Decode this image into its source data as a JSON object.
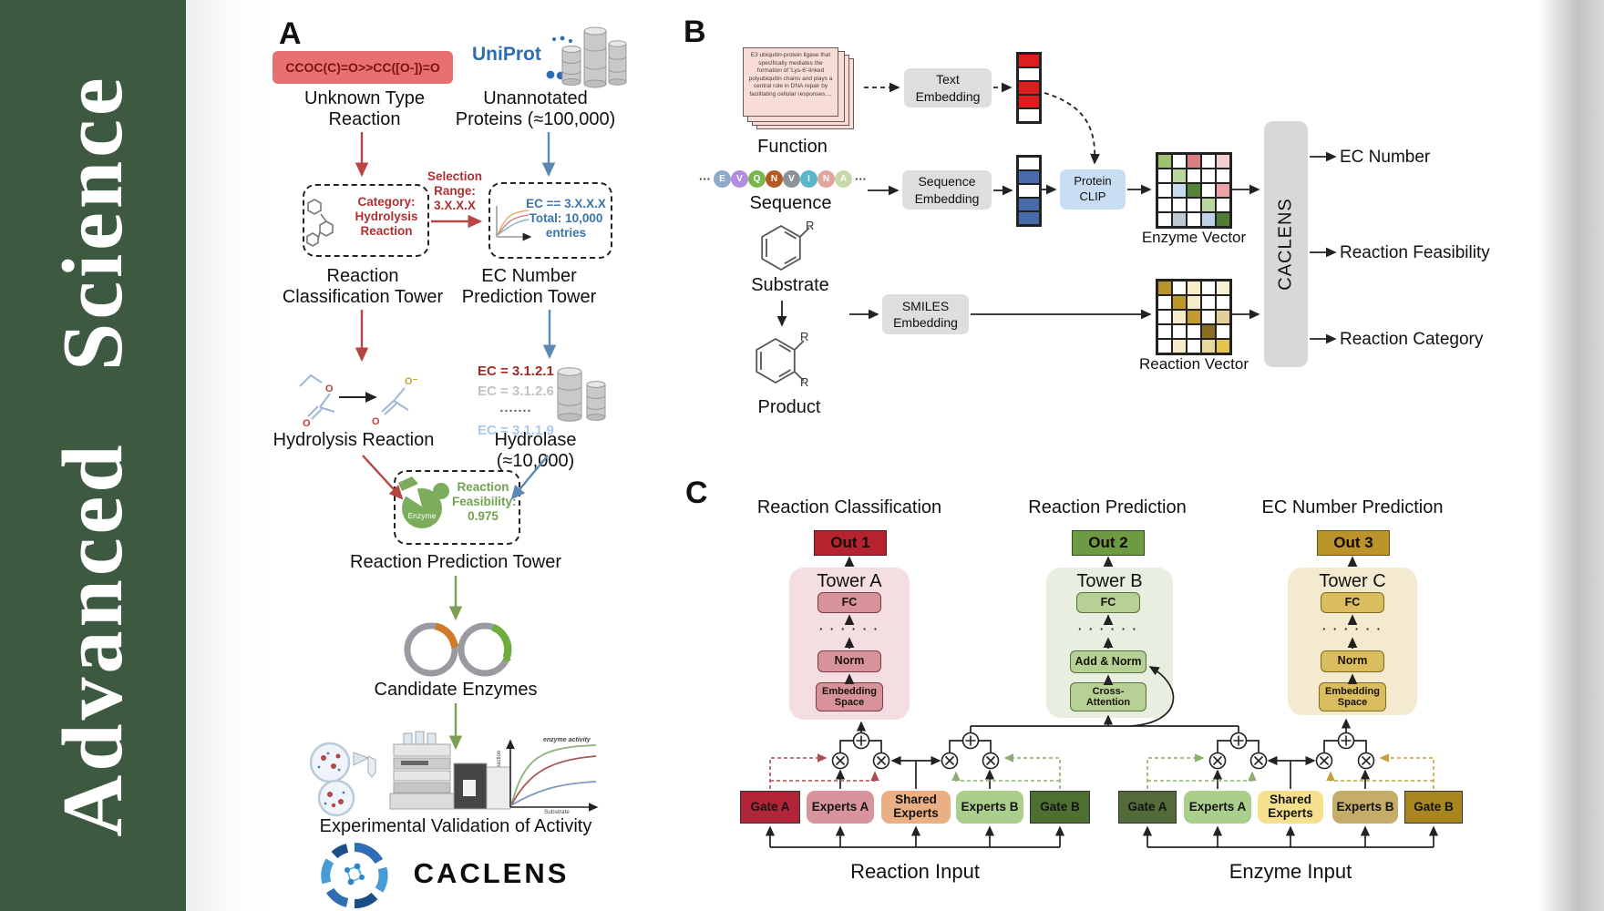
{
  "sidebar": {
    "journal": "Advanced  Science"
  },
  "panels": {
    "A": {
      "label": "A",
      "smiles_box": "CCOC(C)=O>>CC([O-])=O",
      "unknown_reaction": "Unknown Type\nReaction",
      "uniprot_logo": "UniProt",
      "unannotated": "Unannotated\nProteins (≈100,000)",
      "selection": "Selection\nRange:\n3.X.X.X",
      "category_box": "Category:\nHydrolysis\nReaction",
      "ec_box": "EC == 3.X.X.X\nTotal: 10,000\nentries",
      "classification_tower": "Reaction\nClassification Tower",
      "ec_tower": "EC Number\nPrediction Tower",
      "hydrolysis_reaction": "Hydrolysis Reaction",
      "hydrolase": "Hydrolase (≈10,000)",
      "ec_list": [
        {
          "text": "EC = 3.1.2.1",
          "color": "#a02828"
        },
        {
          "text": "EC = 3.1.2.6",
          "color": "#c2c2c2"
        },
        {
          "text": "·······",
          "color": "#666666"
        },
        {
          "text": "EC = 3.1.1.9",
          "color": "#adc8e6"
        }
      ],
      "enzyme_blob": "Enzyme",
      "feasibility": "Reaction\nFeasibility:\n0.975",
      "prediction_tower": "Reaction Prediction Tower",
      "candidate_enzymes": "Candidate Enzymes",
      "validation": "Experimental Validation of Activity",
      "brand": "CACLENS",
      "molecule_atoms": {
        "o": "O",
        "o_minus": "O⁻"
      },
      "activity_chart": {
        "curve_label": "enzyme activity",
        "ylabel": "Rate of reaction",
        "xlabel": "Substrate"
      }
    },
    "B": {
      "label": "B",
      "function_card": "E3 ubiquitin-protein ligase that specifically mediates the formation of 'Lys-6'-linked polyubiquitin chains and plays a central role in DNA repair by facilitating cellular responses....",
      "function": "Function",
      "sequence": "Sequence",
      "ellipsis": "···",
      "residues": [
        {
          "l": "E",
          "c": "#8da9cb"
        },
        {
          "l": "V",
          "c": "#b28ce0"
        },
        {
          "l": "Q",
          "c": "#79b74e"
        },
        {
          "l": "N",
          "c": "#b45a20"
        },
        {
          "l": "V",
          "c": "#8d9199"
        },
        {
          "l": "I",
          "c": "#5ab6c9"
        },
        {
          "l": "N",
          "c": "#e3a49e"
        },
        {
          "l": "A",
          "c": "#c7d8ab"
        }
      ],
      "substrate": "Substrate",
      "product": "Product",
      "r_label": "R",
      "text_embedding": "Text\nEmbedding",
      "sequence_embedding": "Sequence\nEmbedding",
      "smiles_embedding": "SMILES\nEmbedding",
      "protein_clip": "Protein\nCLIP",
      "caclens": "CACLENS",
      "enzyme_vector_label": "Enzyme Vector",
      "reaction_vector_label": "Reaction Vector",
      "outputs": [
        "EC Number",
        "Reaction Feasibility",
        "Reaction Category"
      ],
      "text_vector_cells": [
        "#dd1e1e",
        "#ffffff",
        "#dd1e1e",
        "#dd1e1e",
        "#ffffff"
      ],
      "seq_vector_cells": [
        "#ffffff",
        "#486cab",
        "#ffffff",
        "#486cab",
        "#486cab"
      ],
      "enzyme_vector_cells": [
        [
          "#9dc271",
          "#ffffff",
          "#d97f82",
          "#ffffff",
          "#f3cdd0"
        ],
        [
          "#ffffff",
          "#b8d79c",
          "#ffffff",
          "#ffffff",
          "#ffffff"
        ],
        [
          "#ffffff",
          "#c7dbee",
          "#55813a",
          "#ffffff",
          "#eda2a6"
        ],
        [
          "#ffffff",
          "#ffffff",
          "#ffffff",
          "#b8d79c",
          "#ffffff"
        ],
        [
          "#ffffff",
          "#bcc8d2",
          "#ffffff",
          "#bdd2e8",
          "#527b35"
        ]
      ],
      "reaction_vector_cells": [
        [
          "#b8922b",
          "#ffffff",
          "#f7edc9",
          "#ffffff",
          "#f8f0d4"
        ],
        [
          "#ffffff",
          "#bd9729",
          "#f6ecca",
          "#ffffff",
          "#ffffff"
        ],
        [
          "#ffffff",
          "#f6ecca",
          "#c29c33",
          "#ffffff",
          "#e3cf9a"
        ],
        [
          "#ffffff",
          "#ffffff",
          "#ffffff",
          "#8a6d1f",
          "#ffffff"
        ],
        [
          "#ffffff",
          "#f6ecca",
          "#ffffff",
          "#e8d79e",
          "#e5c44d"
        ]
      ]
    },
    "C": {
      "label": "C",
      "columns": [
        {
          "title": "Reaction Classification",
          "out": "Out 1",
          "tower": "Tower A",
          "fc": "FC",
          "dots": "· · · · · ·",
          "norm": "Norm",
          "base": "Embedding\nSpace"
        },
        {
          "title": "Reaction Prediction",
          "out": "Out 2",
          "tower": "Tower B",
          "fc": "FC",
          "dots": "· · · · · ·",
          "norm": "Add & Norm",
          "base": "Cross-\nAttention"
        },
        {
          "title": "EC Number Prediction",
          "out": "Out 3",
          "tower": "Tower C",
          "fc": "FC",
          "dots": "· · · · · ·",
          "norm": "Norm",
          "base": "Embedding\nSpace"
        }
      ],
      "moe": [
        {
          "input": "Reaction Input",
          "gate_a": "Gate A",
          "experts_a": "Experts A",
          "shared": "Shared\nExperts",
          "experts_b": "Experts B",
          "gate_b": "Gate B"
        },
        {
          "input": "Enzyme Input",
          "gate_a": "Gate A",
          "experts_a": "Experts A",
          "shared": "Shared\nExperts",
          "experts_b": "Experts B",
          "gate_b": "Gate B"
        }
      ]
    }
  }
}
